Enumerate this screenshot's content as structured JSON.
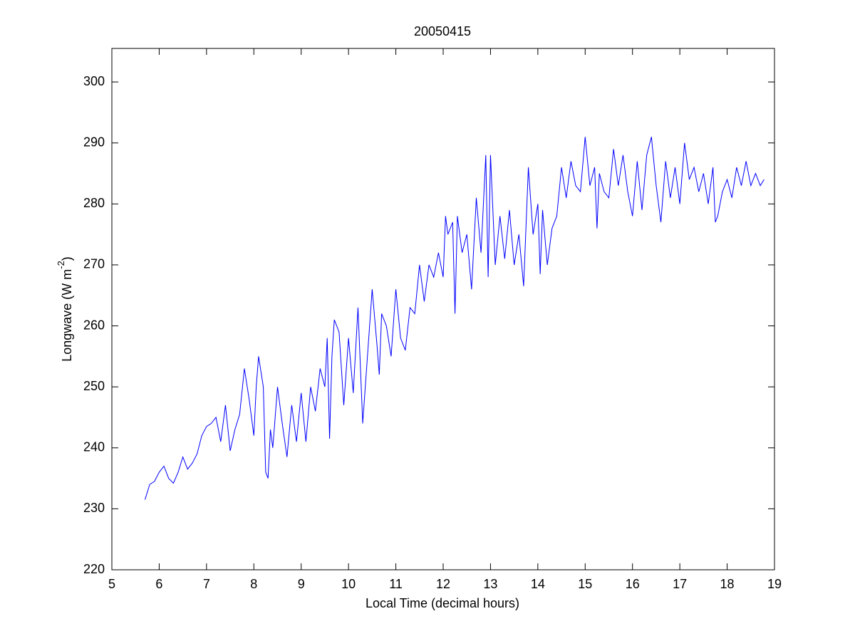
{
  "chart_data": {
    "type": "line",
    "title": "20050415",
    "xlabel": "Local Time (decimal hours)",
    "ylabel": {
      "text": "Longwave (W m",
      "superscript": "-2",
      "suffix": ")"
    },
    "xlim": [
      5,
      19
    ],
    "ylim": [
      220,
      305.5
    ],
    "xticks": [
      5,
      6,
      7,
      8,
      9,
      10,
      11,
      12,
      13,
      14,
      15,
      16,
      17,
      18,
      19
    ],
    "yticks": [
      220,
      230,
      240,
      250,
      260,
      270,
      280,
      290,
      300
    ],
    "color": "#0000ff",
    "x": [
      5.7,
      5.8,
      5.9,
      6.0,
      6.1,
      6.2,
      6.3,
      6.4,
      6.5,
      6.6,
      6.7,
      6.8,
      6.9,
      7.0,
      7.1,
      7.2,
      7.3,
      7.4,
      7.5,
      7.6,
      7.7,
      7.8,
      7.9,
      8.0,
      8.05,
      8.1,
      8.2,
      8.25,
      8.3,
      8.35,
      8.4,
      8.5,
      8.6,
      8.7,
      8.8,
      8.9,
      9.0,
      9.1,
      9.2,
      9.3,
      9.4,
      9.5,
      9.55,
      9.6,
      9.65,
      9.7,
      9.8,
      9.9,
      10.0,
      10.1,
      10.15,
      10.2,
      10.3,
      10.4,
      10.5,
      10.6,
      10.65,
      10.7,
      10.8,
      10.9,
      11.0,
      11.1,
      11.2,
      11.3,
      11.4,
      11.5,
      11.6,
      11.7,
      11.8,
      11.9,
      12.0,
      12.05,
      12.1,
      12.2,
      12.25,
      12.3,
      12.4,
      12.5,
      12.6,
      12.7,
      12.8,
      12.9,
      12.95,
      13.0,
      13.1,
      13.2,
      13.3,
      13.4,
      13.5,
      13.6,
      13.7,
      13.8,
      13.9,
      14.0,
      14.05,
      14.1,
      14.2,
      14.3,
      14.4,
      14.5,
      14.6,
      14.7,
      14.8,
      14.9,
      15.0,
      15.1,
      15.2,
      15.25,
      15.3,
      15.4,
      15.5,
      15.6,
      15.7,
      15.8,
      15.9,
      16.0,
      16.1,
      16.2,
      16.3,
      16.4,
      16.5,
      16.6,
      16.7,
      16.8,
      16.9,
      17.0,
      17.1,
      17.2,
      17.3,
      17.4,
      17.5,
      17.6,
      17.7,
      17.75,
      17.8,
      17.9,
      18.0,
      18.1,
      18.2,
      18.3,
      18.4,
      18.5,
      18.6,
      18.7,
      18.78
    ],
    "values": [
      231.5,
      234,
      234.5,
      236,
      237,
      235,
      234.2,
      236,
      238.5,
      236.5,
      237.5,
      239,
      242,
      243.5,
      244,
      245,
      241,
      247,
      239.5,
      243,
      245.5,
      253,
      248,
      242,
      250,
      255,
      250,
      236,
      235,
      243,
      240,
      250,
      244,
      238.5,
      247,
      241,
      249,
      241,
      250,
      246,
      253,
      250,
      258,
      241.5,
      255,
      261,
      259,
      247,
      258,
      249,
      256,
      263,
      244,
      255,
      266,
      257,
      252,
      262,
      260,
      255,
      266,
      258,
      256,
      263,
      262,
      270,
      264,
      270,
      268,
      272,
      268,
      278,
      275,
      277,
      262,
      278,
      272,
      275,
      266,
      281,
      272,
      288,
      268,
      288,
      270,
      278,
      271,
      279,
      270,
      275,
      266.5,
      286,
      275,
      280,
      268.5,
      279,
      270,
      276,
      278,
      286,
      281,
      287,
      283,
      282,
      291,
      283,
      286,
      276,
      285,
      282,
      281,
      289,
      283,
      288,
      282,
      278,
      287,
      279,
      288,
      291,
      283,
      277,
      287,
      281,
      286,
      280,
      290,
      284,
      286,
      282,
      285,
      280,
      286,
      277,
      278,
      282,
      284,
      281,
      286,
      283,
      287,
      283,
      285,
      283,
      284
    ]
  }
}
